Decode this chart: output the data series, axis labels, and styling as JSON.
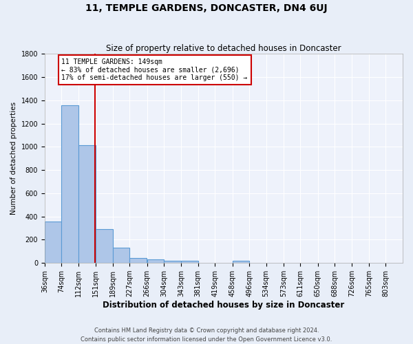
{
  "title": "11, TEMPLE GARDENS, DONCASTER, DN4 6UJ",
  "subtitle": "Size of property relative to detached houses in Doncaster",
  "xlabel": "Distribution of detached houses by size in Doncaster",
  "ylabel": "Number of detached properties",
  "footer": "Contains HM Land Registry data © Crown copyright and database right 2024.\nContains public sector information licensed under the Open Government Licence v3.0.",
  "bin_labels": [
    "36sqm",
    "74sqm",
    "112sqm",
    "151sqm",
    "189sqm",
    "227sqm",
    "266sqm",
    "304sqm",
    "343sqm",
    "381sqm",
    "419sqm",
    "458sqm",
    "496sqm",
    "534sqm",
    "573sqm",
    "611sqm",
    "650sqm",
    "688sqm",
    "726sqm",
    "765sqm",
    "803sqm"
  ],
  "bin_edges": [
    36,
    74,
    112,
    151,
    189,
    227,
    266,
    304,
    343,
    381,
    419,
    458,
    496,
    534,
    573,
    611,
    650,
    688,
    726,
    765,
    803
  ],
  "bar_values": [
    357,
    1356,
    1012,
    289,
    130,
    40,
    30,
    22,
    18,
    0,
    0,
    20,
    0,
    0,
    0,
    0,
    0,
    0,
    0,
    0,
    0
  ],
  "bar_color": "#aec6e8",
  "bar_edge_color": "#5b9bd5",
  "property_size": 149,
  "vline_color": "#cc0000",
  "annotation_line1": "11 TEMPLE GARDENS: 149sqm",
  "annotation_line2": "← 83% of detached houses are smaller (2,696)",
  "annotation_line3": "17% of semi-detached houses are larger (550) →",
  "annotation_box_color": "#ffffff",
  "annotation_box_edge": "#cc0000",
  "ylim": [
    0,
    1800
  ],
  "yticks": [
    0,
    200,
    400,
    600,
    800,
    1000,
    1200,
    1400,
    1600,
    1800
  ],
  "bg_color": "#e8eef8",
  "plot_bg_color": "#eef2fb",
  "title_fontsize": 10,
  "subtitle_fontsize": 8.5,
  "ylabel_fontsize": 7.5,
  "xlabel_fontsize": 8.5,
  "tick_fontsize": 7,
  "footer_fontsize": 6,
  "annotation_fontsize": 7
}
